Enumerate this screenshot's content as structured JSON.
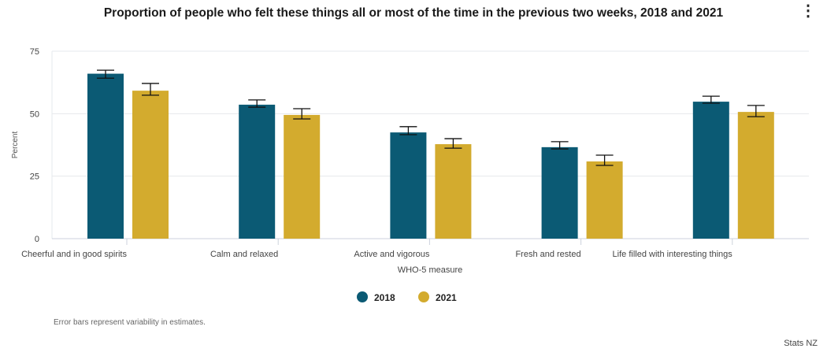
{
  "menu_icon": "vertical-ellipsis-icon",
  "note": "Error bars represent variability in estimates.",
  "credit": "Stats NZ",
  "chart_data": {
    "type": "bar",
    "title": "Proportion of people who felt these things all or most of the time in the previous two weeks, 2018 and 2021",
    "xlabel": "WHO-5 measure",
    "ylabel": "Percent",
    "ylim": [
      0,
      75
    ],
    "yticks": [
      0,
      25,
      50,
      75
    ],
    "grid": true,
    "legend_position": "bottom",
    "categories": [
      "Cheerful and in good spirits",
      "Calm and relaxed",
      "Active and vigorous",
      "Fresh and rested",
      "Life filled with interesting things"
    ],
    "series": [
      {
        "name": "2018",
        "color": "#0b5a74",
        "values": [
          66,
          53.6,
          42.5,
          36.6,
          54.8
        ],
        "error_low": [
          64.2,
          52.6,
          41.6,
          35.9,
          54.2
        ],
        "error_high": [
          67.4,
          55.5,
          44.8,
          38.8,
          57
        ]
      },
      {
        "name": "2021",
        "color": "#d3ab2e",
        "values": [
          59.2,
          49.5,
          37.8,
          30.9,
          50.7
        ],
        "error_low": [
          57.4,
          47.9,
          36.2,
          29.3,
          48.8
        ],
        "error_high": [
          62.1,
          52,
          40,
          33.4,
          53.3
        ]
      }
    ]
  }
}
